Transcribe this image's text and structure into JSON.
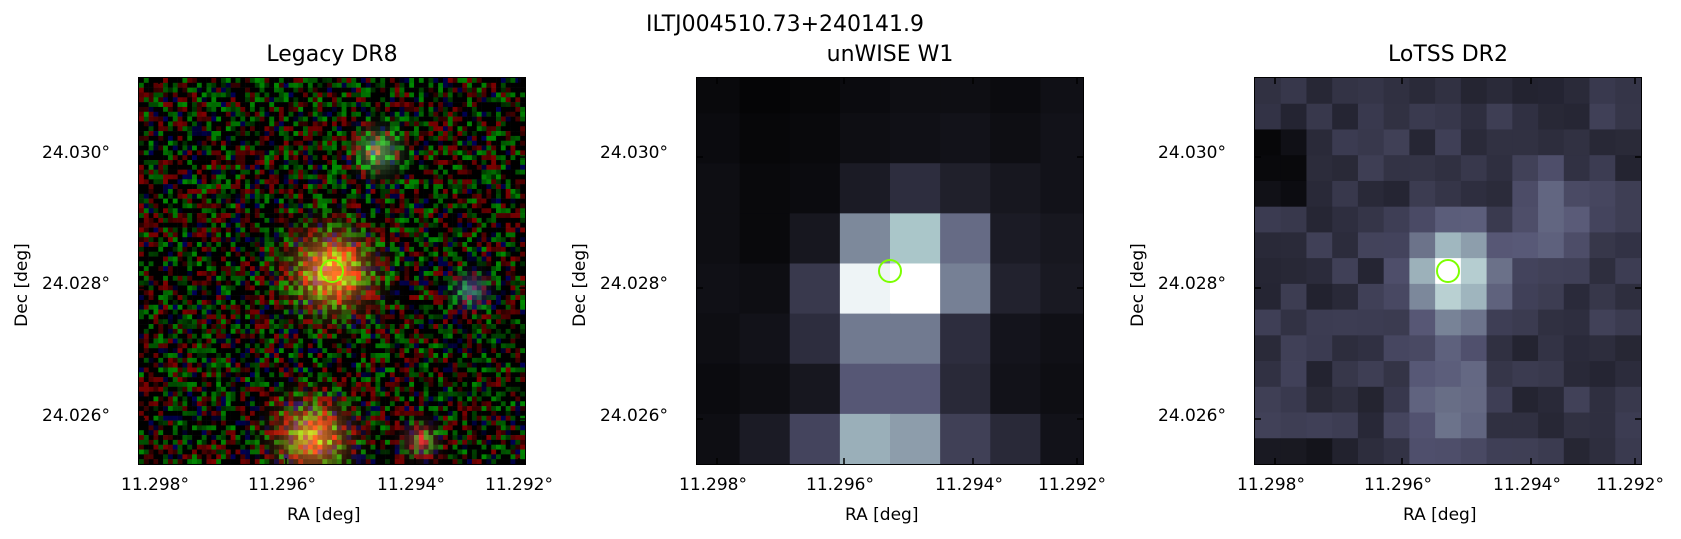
{
  "figure": {
    "title": "ILTJ004510.73+240141.9"
  },
  "panels": [
    {
      "title": "Legacy DR8",
      "xlabel": "RA [deg]",
      "ylabel": "Dec [deg]",
      "xticks": [
        "11.298°",
        "11.296°",
        "11.294°",
        "11.292°"
      ],
      "yticks": [
        "24.030°",
        "24.028°",
        "24.026°"
      ],
      "image_kind": "optical-rgb-noise",
      "marker_color": "#7cff00"
    },
    {
      "title": "unWISE W1",
      "xlabel": "RA [deg]",
      "ylabel": "Dec [deg]",
      "xticks": [
        "11.298°",
        "11.296°",
        "11.294°",
        "11.292°"
      ],
      "yticks": [
        "24.030°",
        "24.028°",
        "24.026°"
      ],
      "image_kind": "infrared-bone",
      "marker_color": "#7cff00"
    },
    {
      "title": "LoTSS DR2",
      "xlabel": "RA [deg]",
      "ylabel": "Dec [deg]",
      "xticks": [
        "11.298°",
        "11.296°",
        "11.294°",
        "11.292°"
      ],
      "yticks": [
        "24.030°",
        "24.028°",
        "24.026°"
      ],
      "image_kind": "radio-bone",
      "marker_color": "#7cff00"
    }
  ]
}
